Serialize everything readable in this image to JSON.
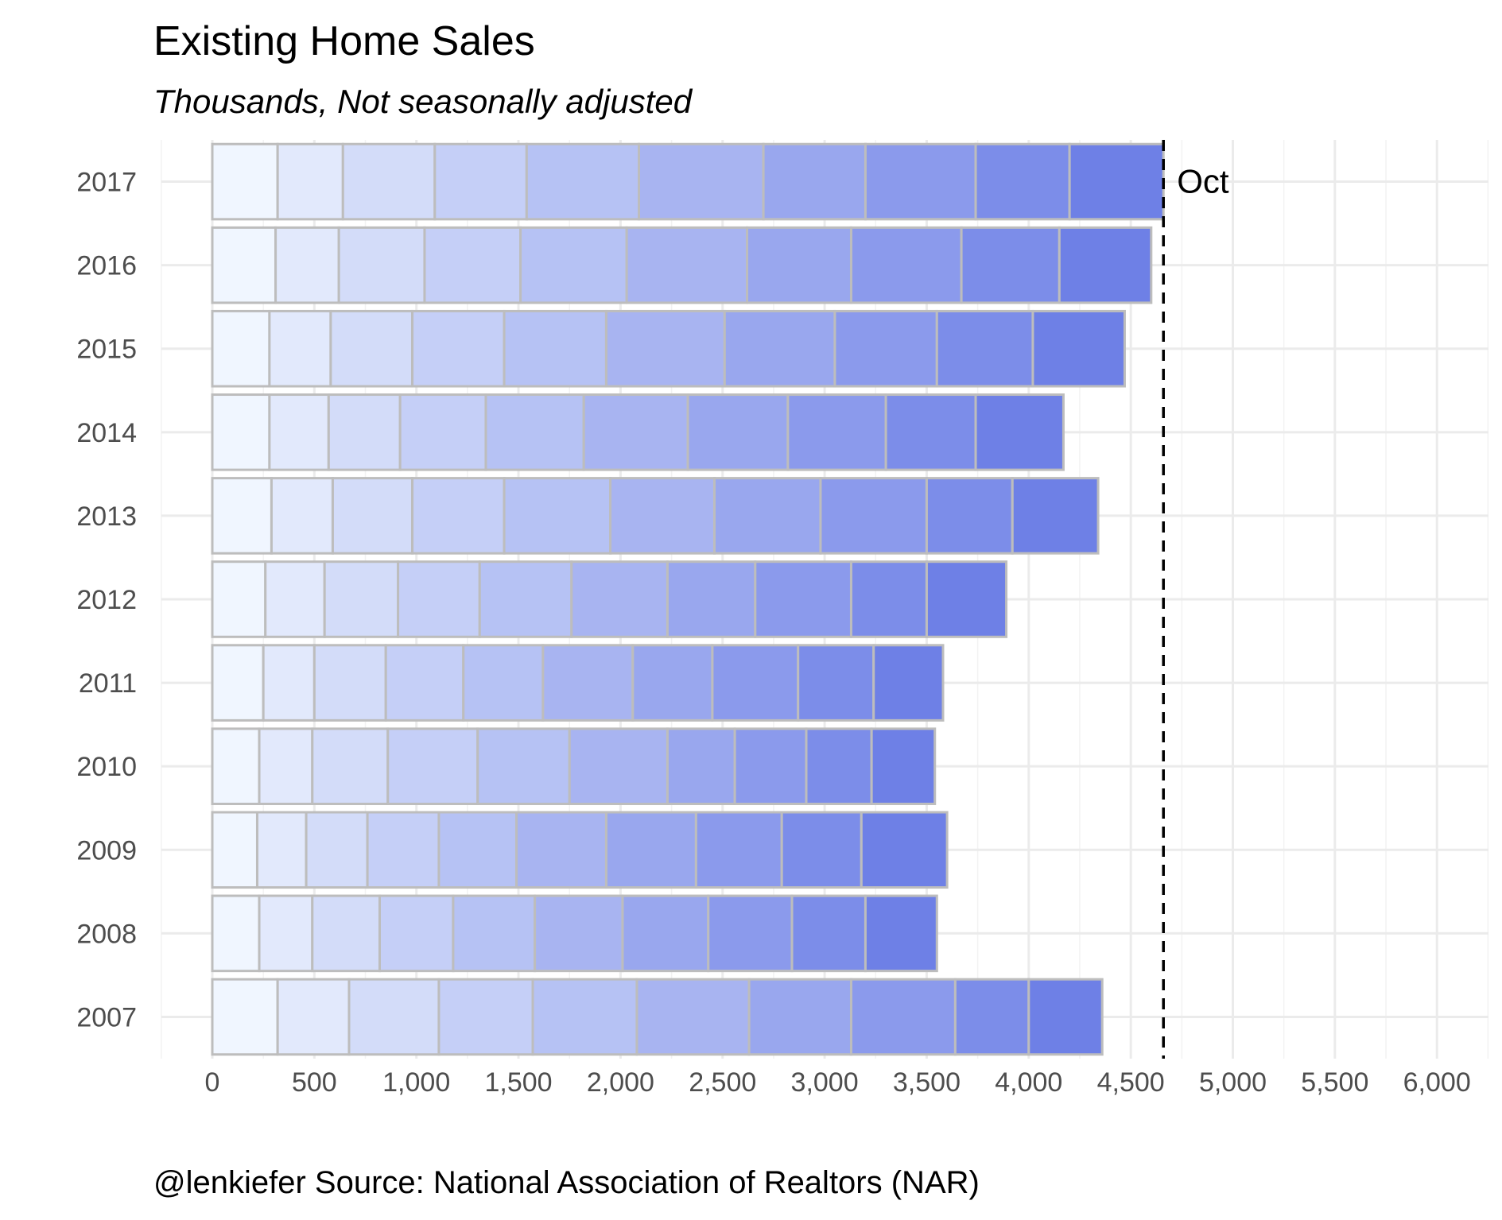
{
  "chart_data": {
    "type": "bar",
    "title": "Existing Home Sales",
    "subtitle": "Thousands, Not seasonally adjusted",
    "caption": "@lenkiefer Source: National Association of Realtors (NAR)",
    "xlim": [
      -250,
      6250
    ],
    "x_ticks": [
      0,
      500,
      1000,
      1500,
      2000,
      2500,
      3000,
      3500,
      4000,
      4500,
      5000,
      5500,
      6000
    ],
    "x_tick_labels": [
      "0",
      "500",
      "1,000",
      "1,500",
      "2,000",
      "2,500",
      "3,000",
      "3,500",
      "4,000",
      "4,500",
      "5,000",
      "5,500",
      "6,000"
    ],
    "grid": true,
    "stacked": true,
    "reference_line": {
      "value": 4660,
      "label": "Oct",
      "style": "dashed"
    },
    "color_scale": [
      "#f0f6ff",
      "#6e80e6"
    ],
    "categories": [
      "2017",
      "2016",
      "2015",
      "2014",
      "2013",
      "2012",
      "2011",
      "2010",
      "2009",
      "2008",
      "2007"
    ],
    "cumulative_by_month": {
      "2017": [
        320,
        640,
        1090,
        1540,
        2090,
        2700,
        3200,
        3740,
        4200,
        4660
      ],
      "2016": [
        310,
        620,
        1040,
        1510,
        2030,
        2620,
        3130,
        3670,
        4150,
        4600
      ],
      "2015": [
        280,
        580,
        980,
        1430,
        1930,
        2510,
        3050,
        3550,
        4020,
        4470
      ],
      "2014": [
        280,
        570,
        920,
        1340,
        1820,
        2330,
        2820,
        3300,
        3740,
        4170
      ],
      "2013": [
        290,
        590,
        980,
        1430,
        1950,
        2460,
        2980,
        3500,
        3920,
        4340
      ],
      "2012": [
        260,
        550,
        910,
        1310,
        1760,
        2230,
        2660,
        3130,
        3500,
        3890
      ],
      "2011": [
        250,
        500,
        850,
        1230,
        1620,
        2060,
        2450,
        2870,
        3240,
        3580
      ],
      "2010": [
        230,
        490,
        860,
        1300,
        1750,
        2230,
        2560,
        2910,
        3230,
        3540
      ],
      "2009": [
        220,
        460,
        760,
        1110,
        1490,
        1930,
        2370,
        2790,
        3180,
        3600
      ],
      "2008": [
        230,
        490,
        820,
        1180,
        1580,
        2010,
        2430,
        2840,
        3200,
        3550
      ],
      "2007": [
        320,
        670,
        1110,
        1570,
        2080,
        2630,
        3130,
        3640,
        4000,
        4360
      ]
    }
  }
}
